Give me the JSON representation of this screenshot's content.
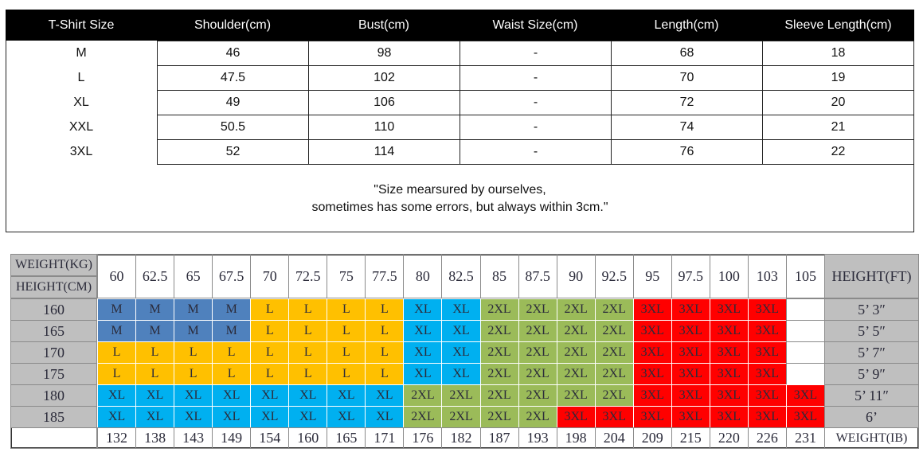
{
  "size_table": {
    "headers": [
      "T-Shirt Size",
      "Shoulder(cm)",
      "Bust(cm)",
      "Waist Size(cm)",
      "Length(cm)",
      "Sleeve Length(cm)"
    ],
    "rows": [
      [
        "M",
        "46",
        "98",
        "-",
        "68",
        "18"
      ],
      [
        "L",
        "47.5",
        "102",
        "-",
        "70",
        "19"
      ],
      [
        "XL",
        "49",
        "106",
        "-",
        "72",
        "20"
      ],
      [
        "XXL",
        "50.5",
        "110",
        "-",
        "74",
        "21"
      ],
      [
        "3XL",
        "52",
        "114",
        "-",
        "76",
        "22"
      ]
    ],
    "note": [
      "\"Size mearsured by ourselves,",
      "sometimes has some errors, but always within 3cm.\""
    ]
  },
  "size_chart": {
    "weight_kg_label": "WEIGHT(KG)",
    "height_cm_label": "HEIGHT(CM)",
    "height_ft_label": "HEIGHT(FT)",
    "weight_lb_label": "WEIGHT(IB)",
    "weights_kg": [
      "60",
      "62.5",
      "65",
      "67.5",
      "70",
      "72.5",
      "75",
      "77.5",
      "80",
      "82.5",
      "85",
      "87.5",
      "90",
      "92.5",
      "95",
      "97.5",
      "100",
      "103",
      "105"
    ],
    "weights_lb": [
      "132",
      "138",
      "143",
      "149",
      "154",
      "160",
      "165",
      "171",
      "176",
      "182",
      "187",
      "193",
      "198",
      "204",
      "209",
      "215",
      "220",
      "226",
      "231"
    ],
    "rows": [
      {
        "height_cm": "160",
        "height_ft": "5’ 3″",
        "sizes": [
          "M",
          "M",
          "M",
          "M",
          "L",
          "L",
          "L",
          "L",
          "XL",
          "XL",
          "2XL",
          "2XL",
          "2XL",
          "2XL",
          "3XL",
          "3XL",
          "3XL",
          "3XL",
          null
        ],
        "colors": [
          "#4f81bd",
          "#4f81bd",
          "#4f81bd",
          "#4f81bd",
          "#ffc000",
          "#ffc000",
          "#ffc000",
          "#ffc000",
          "#00b0f0",
          "#00b0f0",
          "#9bbb59",
          "#9bbb59",
          "#9bbb59",
          "#9bbb59",
          "#ff0000",
          "#ff0000",
          "#ff0000",
          "#ff0000",
          null
        ]
      },
      {
        "height_cm": "165",
        "height_ft": "5’ 5″",
        "sizes": [
          "M",
          "M",
          "M",
          "M",
          "L",
          "L",
          "L",
          "L",
          "XL",
          "XL",
          "2XL",
          "2XL",
          "2XL",
          "2XL",
          "3XL",
          "3XL",
          "3XL",
          "3XL",
          null
        ],
        "colors": [
          "#4f81bd",
          "#4f81bd",
          "#4f81bd",
          "#4f81bd",
          "#ffc000",
          "#ffc000",
          "#ffc000",
          "#ffc000",
          "#00b0f0",
          "#00b0f0",
          "#9bbb59",
          "#9bbb59",
          "#9bbb59",
          "#9bbb59",
          "#ff0000",
          "#ff0000",
          "#ff0000",
          "#ff0000",
          null
        ]
      },
      {
        "height_cm": "170",
        "height_ft": "5’ 7″",
        "sizes": [
          "L",
          "L",
          "L",
          "L",
          "L",
          "L",
          "L",
          "L",
          "XL",
          "XL",
          "2XL",
          "2XL",
          "2XL",
          "2XL",
          "3XL",
          "3XL",
          "3XL",
          "3XL",
          null
        ],
        "colors": [
          "#ffc000",
          "#ffc000",
          "#ffc000",
          "#ffc000",
          "#ffc000",
          "#ffc000",
          "#ffc000",
          "#ffc000",
          "#00b0f0",
          "#00b0f0",
          "#9bbb59",
          "#9bbb59",
          "#9bbb59",
          "#9bbb59",
          "#ff0000",
          "#ff0000",
          "#ff0000",
          "#ff0000",
          null
        ]
      },
      {
        "height_cm": "175",
        "height_ft": "5’ 9″",
        "sizes": [
          "L",
          "L",
          "L",
          "L",
          "L",
          "L",
          "L",
          "L",
          "XL",
          "XL",
          "2XL",
          "2XL",
          "2XL",
          "2XL",
          "3XL",
          "3XL",
          "3XL",
          "3XL",
          null
        ],
        "colors": [
          "#ffc000",
          "#ffc000",
          "#ffc000",
          "#ffc000",
          "#ffc000",
          "#ffc000",
          "#ffc000",
          "#ffc000",
          "#00b0f0",
          "#00b0f0",
          "#9bbb59",
          "#9bbb59",
          "#9bbb59",
          "#9bbb59",
          "#ff0000",
          "#ff0000",
          "#ff0000",
          "#ff0000",
          null
        ]
      },
      {
        "height_cm": "180",
        "height_ft": "5’ 11″",
        "sizes": [
          "XL",
          "XL",
          "XL",
          "XL",
          "XL",
          "XL",
          "XL",
          "XL",
          "2XL",
          "2XL",
          "2XL",
          "2XL",
          "2XL",
          "2XL",
          "3XL",
          "3XL",
          "3XL",
          "3XL",
          "3XL"
        ],
        "colors": [
          "#00b0f0",
          "#00b0f0",
          "#00b0f0",
          "#00b0f0",
          "#00b0f0",
          "#00b0f0",
          "#00b0f0",
          "#00b0f0",
          "#9bbb59",
          "#9bbb59",
          "#9bbb59",
          "#9bbb59",
          "#9bbb59",
          "#9bbb59",
          "#ff0000",
          "#ff0000",
          "#ff0000",
          "#ff0000",
          "#ff0000"
        ]
      },
      {
        "height_cm": "185",
        "height_ft": "6’",
        "sizes": [
          "XL",
          "XL",
          "XL",
          "XL",
          "XL",
          "XL",
          "XL",
          "XL",
          "2XL",
          "2XL",
          "2XL",
          "2XL",
          "3XL",
          "3XL",
          "3XL",
          "3XL",
          "3XL",
          "3XL",
          "3XL"
        ],
        "colors": [
          "#00b0f0",
          "#00b0f0",
          "#00b0f0",
          "#00b0f0",
          "#00b0f0",
          "#00b0f0",
          "#00b0f0",
          "#00b0f0",
          "#9bbb59",
          "#9bbb59",
          "#9bbb59",
          "#9bbb59",
          "#ff0000",
          "#ff0000",
          "#ff0000",
          "#ff0000",
          "#ff0000",
          "#ff0000",
          "#ff0000"
        ]
      }
    ]
  }
}
